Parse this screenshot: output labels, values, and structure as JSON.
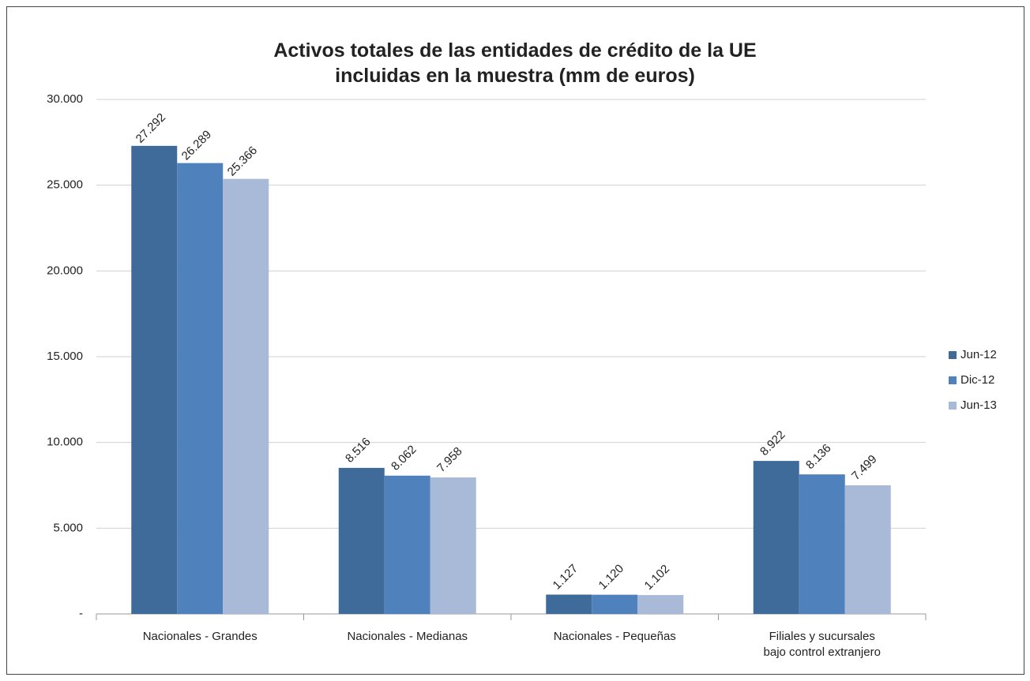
{
  "chart_data": {
    "type": "bar",
    "title": "Activos totales de las entidades de crédito de la UE\nincluidas en la muestra (mm de euros)",
    "categories": [
      "Nacionales - Grandes",
      "Nacionales - Medianas",
      "Nacionales - Pequeñas",
      "Filiales y sucursales\nbajo control extranjero"
    ],
    "series": [
      {
        "name": "Jun-12",
        "color": "#3f6b9b",
        "values": [
          27292,
          8516,
          1127,
          8922
        ],
        "value_labels": [
          "27.292",
          "8.516",
          "1.127",
          "8.922"
        ]
      },
      {
        "name": "Dic-12",
        "color": "#4f81bd",
        "values": [
          26289,
          8062,
          1120,
          8136
        ],
        "value_labels": [
          "26.289",
          "8.062",
          "1.120",
          "8.136"
        ]
      },
      {
        "name": "Jun-13",
        "color": "#a9b9d8",
        "values": [
          25366,
          7958,
          1102,
          7499
        ],
        "value_labels": [
          "25.366",
          "7.958",
          "1.102",
          "7.499"
        ]
      }
    ],
    "ylim": [
      0,
      30000
    ],
    "yticks": [
      {
        "value": 0,
        "label": "-"
      },
      {
        "value": 5000,
        "label": "5.000"
      },
      {
        "value": 10000,
        "label": "10.000"
      },
      {
        "value": 15000,
        "label": "15.000"
      },
      {
        "value": 20000,
        "label": "20.000"
      },
      {
        "value": 25000,
        "label": "25.000"
      },
      {
        "value": 30000,
        "label": "30.000"
      }
    ],
    "grid": true,
    "legend": "right"
  }
}
